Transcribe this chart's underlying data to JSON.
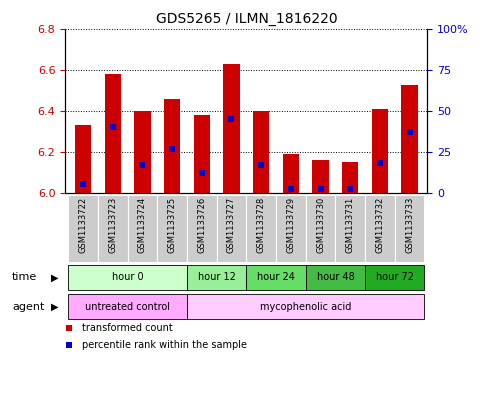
{
  "title": "GDS5265 / ILMN_1816220",
  "samples": [
    "GSM1133722",
    "GSM1133723",
    "GSM1133724",
    "GSM1133725",
    "GSM1133726",
    "GSM1133727",
    "GSM1133728",
    "GSM1133729",
    "GSM1133730",
    "GSM1133731",
    "GSM1133732",
    "GSM1133733"
  ],
  "bar_bottoms": [
    6.0,
    6.0,
    6.0,
    6.0,
    6.0,
    6.0,
    6.0,
    6.0,
    6.0,
    6.0,
    6.0,
    6.0
  ],
  "bar_tops": [
    6.33,
    6.58,
    6.4,
    6.46,
    6.38,
    6.63,
    6.4,
    6.19,
    6.16,
    6.15,
    6.41,
    6.53
  ],
  "percentile_ranks": [
    5,
    40,
    17,
    27,
    12,
    45,
    17,
    2,
    2,
    2,
    18,
    37
  ],
  "ylim_left": [
    6.0,
    6.8
  ],
  "ylim_right": [
    0,
    100
  ],
  "yticks_left": [
    6.0,
    6.2,
    6.4,
    6.6,
    6.8
  ],
  "yticks_right": [
    0,
    25,
    50,
    75,
    100
  ],
  "ytick_labels_right": [
    "0",
    "25",
    "50",
    "75",
    "100%"
  ],
  "bar_color": "#cc0000",
  "percentile_color": "#0000cc",
  "grid_color": "#000000",
  "time_groups": [
    {
      "label": "hour 0",
      "start": 0,
      "end": 3
    },
    {
      "label": "hour 12",
      "start": 4,
      "end": 5
    },
    {
      "label": "hour 24",
      "start": 6,
      "end": 7
    },
    {
      "label": "hour 48",
      "start": 8,
      "end": 9
    },
    {
      "label": "hour 72",
      "start": 10,
      "end": 11
    }
  ],
  "time_colors": [
    "#ccffcc",
    "#99ee99",
    "#66dd66",
    "#44bb44",
    "#22aa22"
  ],
  "agent_groups": [
    {
      "label": "untreated control",
      "start": 0,
      "end": 3
    },
    {
      "label": "mycophenolic acid",
      "start": 4,
      "end": 11
    }
  ],
  "agent_colors": [
    "#ffaaff",
    "#ffccff"
  ],
  "legend_items": [
    {
      "label": "transformed count",
      "color": "#cc0000"
    },
    {
      "label": "percentile rank within the sample",
      "color": "#0000cc"
    }
  ],
  "axis_color_left": "#cc0000",
  "axis_color_right": "#0000cc",
  "bg_sample_strip": "#cccccc",
  "figsize": [
    4.83,
    3.93
  ],
  "dpi": 100
}
